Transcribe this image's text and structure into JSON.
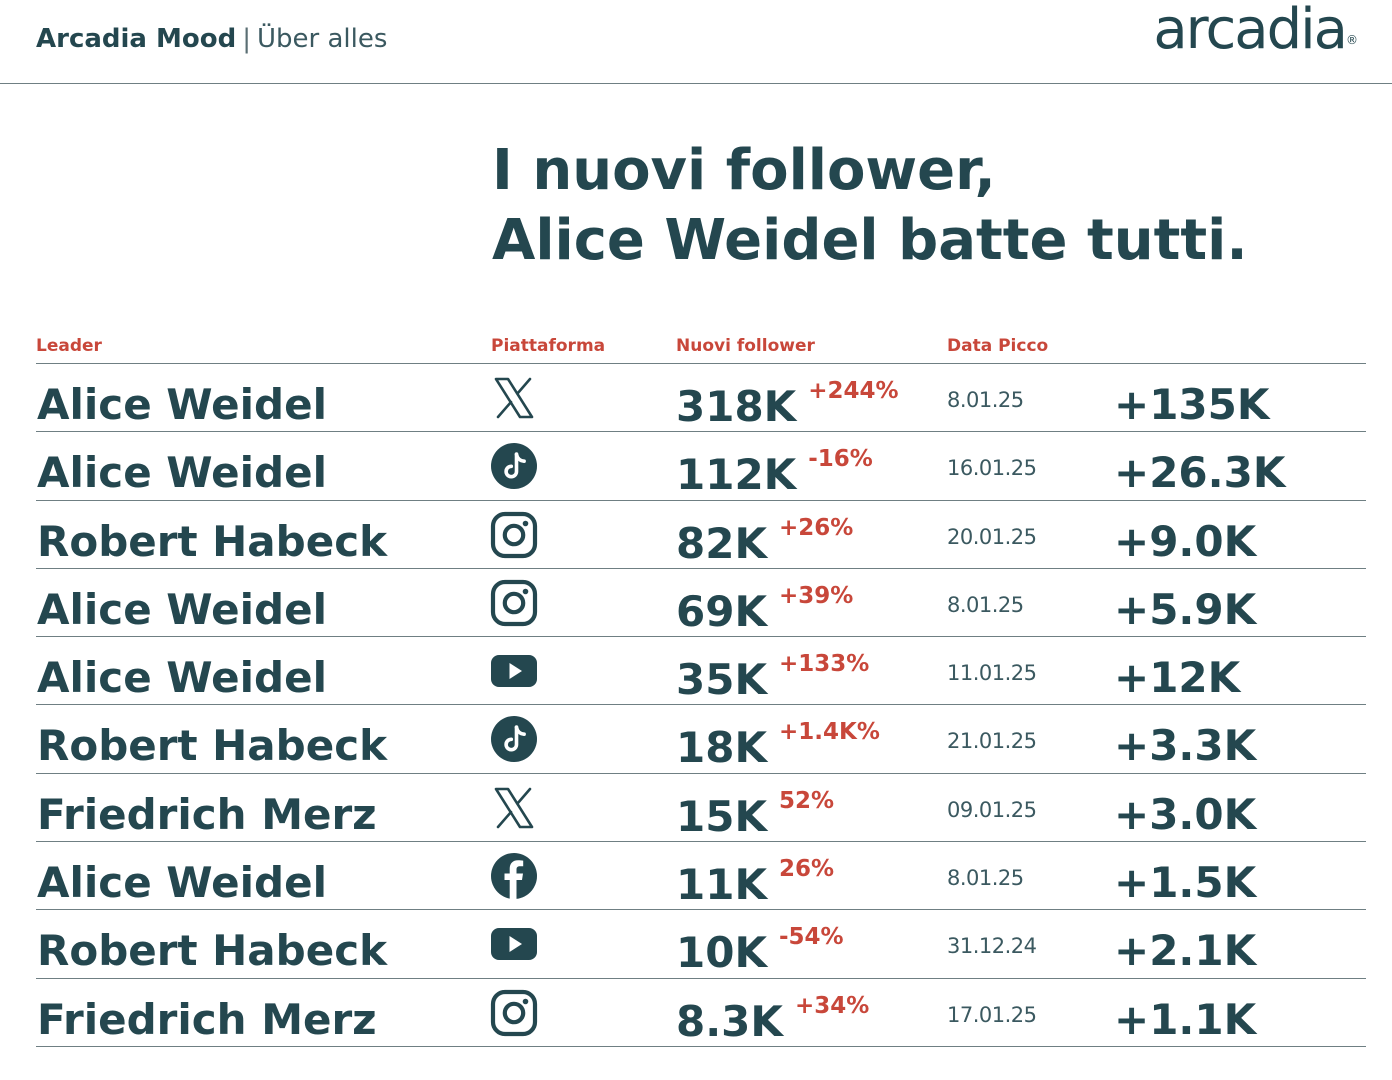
{
  "header": {
    "brand_strong": "Arcadia Mood",
    "separator": "|",
    "brand_sub": "Über alles",
    "logo_text": "arcadia",
    "logo_mark": "®"
  },
  "headline": {
    "line1": "I nuovi follower,",
    "line2": "Alice Weidel batte tutti."
  },
  "columns": {
    "leader": "Leader",
    "platform": "Piattaforma",
    "new_followers": "Nuovi follower",
    "peak_date": "Data Picco"
  },
  "colors": {
    "primary": "#24474f",
    "accent": "#c8473a",
    "rule": "#6f7f83"
  },
  "rows": [
    {
      "leader": "Alice Weidel",
      "platform_icon": "x-icon",
      "new": "318K",
      "change": "+244%",
      "date": "8.01.25",
      "peak": "+135K"
    },
    {
      "leader": "Alice Weidel",
      "platform_icon": "tiktok-icon",
      "new": "112K",
      "change": "-16%",
      "date": "16.01.25",
      "peak": "+26.3K"
    },
    {
      "leader": "Robert Habeck",
      "platform_icon": "instagram-icon",
      "new": "82K",
      "change": "+26%",
      "date": "20.01.25",
      "peak": "+9.0K"
    },
    {
      "leader": "Alice Weidel",
      "platform_icon": "instagram-icon",
      "new": "69K",
      "change": "+39%",
      "date": "8.01.25",
      "peak": "+5.9K"
    },
    {
      "leader": "Alice Weidel",
      "platform_icon": "youtube-icon",
      "new": "35K",
      "change": "+133%",
      "date": "11.01.25",
      "peak": "+12K"
    },
    {
      "leader": "Robert Habeck",
      "platform_icon": "tiktok-icon",
      "new": "18K",
      "change": "+1.4K%",
      "date": "21.01.25",
      "peak": "+3.3K"
    },
    {
      "leader": "Friedrich Merz",
      "platform_icon": "x-icon",
      "new": "15K",
      "change": "52%",
      "date": "09.01.25",
      "peak": "+3.0K"
    },
    {
      "leader": "Alice Weidel",
      "platform_icon": "facebook-icon",
      "new": "11K",
      "change": "26%",
      "date": "8.01.25",
      "peak": "+1.5K"
    },
    {
      "leader": "Robert Habeck",
      "platform_icon": "youtube-icon",
      "new": "10K",
      "change": "-54%",
      "date": "31.12.24",
      "peak": "+2.1K"
    },
    {
      "leader": "Friedrich Merz",
      "platform_icon": "instagram-icon",
      "new": "8.3K",
      "change": "+34%",
      "date": "17.01.25",
      "peak": "+1.1K"
    }
  ]
}
